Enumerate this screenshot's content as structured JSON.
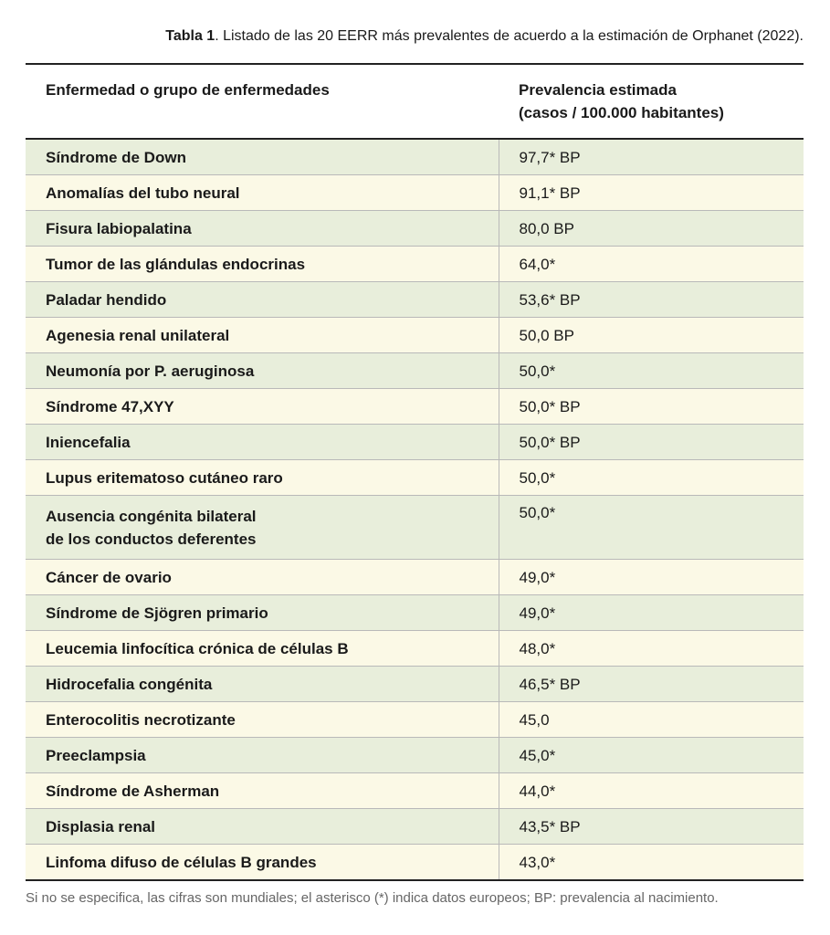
{
  "caption": {
    "label": "Tabla 1",
    "text": ". Listado de las 20 EERR más prevalentes de acuerdo a la estimación de Orphanet (2022)."
  },
  "table": {
    "headers": [
      [
        "Enfermedad o grupo de enfermedades"
      ],
      [
        "Prevalencia estimada",
        "(casos / 100.000 habitantes)"
      ]
    ],
    "rows": [
      [
        [
          "Síndrome de Down"
        ],
        "97,7* BP"
      ],
      [
        [
          "Anomalías del tubo neural"
        ],
        "91,1* BP"
      ],
      [
        [
          "Fisura labiopalatina"
        ],
        "80,0 BP"
      ],
      [
        [
          "Tumor de las glándulas endocrinas"
        ],
        "64,0*"
      ],
      [
        [
          "Paladar hendido"
        ],
        "53,6* BP"
      ],
      [
        [
          "Agenesia renal unilateral"
        ],
        "50,0 BP"
      ],
      [
        [
          "Neumonía por P. aeruginosa"
        ],
        "50,0*"
      ],
      [
        [
          "Síndrome 47,XYY"
        ],
        "50,0* BP"
      ],
      [
        [
          "Iniencefalia"
        ],
        "50,0* BP"
      ],
      [
        [
          "Lupus eritematoso cutáneo raro"
        ],
        "50,0*"
      ],
      [
        [
          "Ausencia congénita bilateral",
          "de los conductos deferentes"
        ],
        "50,0*"
      ],
      [
        [
          "Cáncer de ovario"
        ],
        "49,0*"
      ],
      [
        [
          "Síndrome de Sjögren primario"
        ],
        "49,0*"
      ],
      [
        [
          "Leucemia linfocítica crónica de células B"
        ],
        "48,0*"
      ],
      [
        [
          "Hidrocefalia congénita"
        ],
        "46,5* BP"
      ],
      [
        [
          "Enterocolitis necrotizante"
        ],
        "45,0"
      ],
      [
        [
          "Preeclampsia"
        ],
        "45,0*"
      ],
      [
        [
          "Síndrome de Asherman"
        ],
        "44,0*"
      ],
      [
        [
          "Displasia renal"
        ],
        "43,5* BP"
      ],
      [
        [
          "Linfoma difuso de células B grandes"
        ],
        "43,0*"
      ]
    ]
  },
  "footnote": "Si no se especifica, las cifras son mundiales; el asterisco (*) indica datos europeos; BP: prevalencia al nacimiento."
}
